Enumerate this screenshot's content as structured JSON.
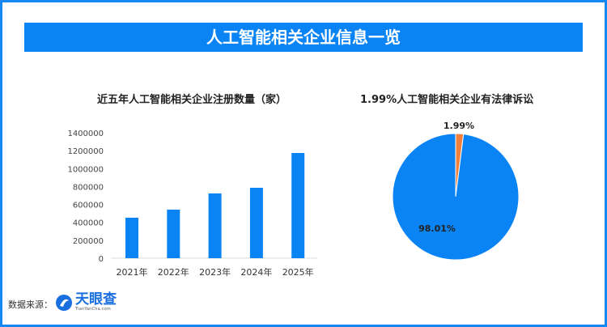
{
  "title": "人工智能相关企业信息一览",
  "source_label": "数据来源：",
  "source_logo": "天眼查",
  "source_logo_sub": "TianYanCha.com",
  "colors": {
    "primary": "#0a84f5",
    "accent": "#f07f3c"
  },
  "chart_data": [
    {
      "type": "bar",
      "title": "近五年人工智能相关企业注册数量（家）",
      "categories": [
        "2021年",
        "2022年",
        "2023年",
        "2024年",
        "2025年"
      ],
      "values": [
        452000,
        542000,
        723000,
        786000,
        1174000
      ],
      "yticks": [
        "0",
        "200000",
        "400000",
        "600000",
        "800000",
        "1000000",
        "1200000",
        "1400000"
      ],
      "ylim": [
        0,
        1400000
      ],
      "grid": false
    },
    {
      "type": "pie",
      "title": "1.99%人工智能相关企业有法律诉讼",
      "slices": [
        {
          "label": "1.99%",
          "value": 1.99,
          "color": "#f07f3c"
        },
        {
          "label": "98.01%",
          "value": 98.01,
          "color": "#0a84f5"
        }
      ]
    }
  ]
}
